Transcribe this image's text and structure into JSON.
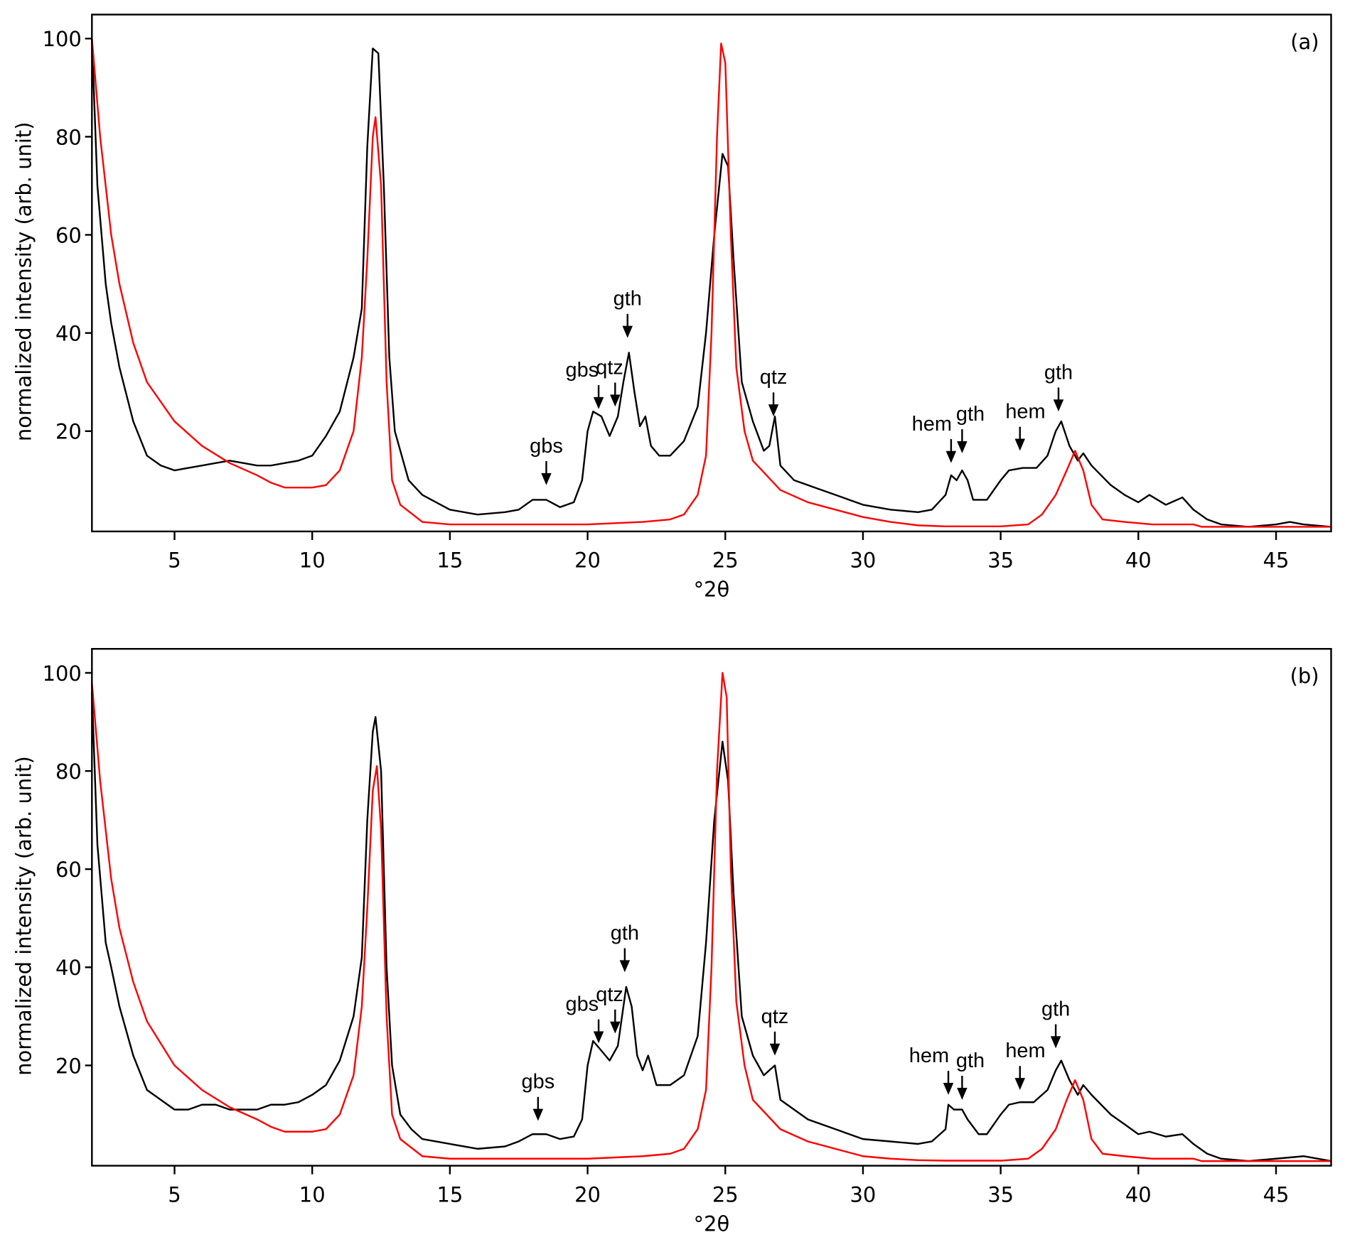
{
  "chart_data": [
    {
      "type": "line",
      "panel_label": "(a)",
      "xlabel": "°2θ",
      "ylabel": "normalized intensity (arb. unit)",
      "xlim": [
        2,
        47
      ],
      "ylim": [
        0,
        105
      ],
      "xticks": [
        5,
        10,
        15,
        20,
        25,
        30,
        35,
        40,
        45
      ],
      "yticks": [
        20,
        40,
        60,
        80,
        100
      ],
      "grid": false,
      "series": [
        {
          "name": "black",
          "color": "#000000",
          "x": [
            2,
            2.2,
            2.5,
            2.7,
            3,
            3.5,
            4,
            4.5,
            5,
            5.5,
            6,
            6.5,
            7,
            7.5,
            8,
            8.5,
            9,
            9.5,
            10,
            10.5,
            11,
            11.5,
            11.8,
            12,
            12.2,
            12.4,
            12.6,
            12.8,
            13,
            13.5,
            14,
            15,
            16,
            17,
            17.5,
            18,
            18.5,
            19,
            19.5,
            19.8,
            20,
            20.2,
            20.5,
            20.8,
            21.1,
            21.3,
            21.5,
            21.7,
            21.9,
            22.1,
            22.3,
            22.6,
            23,
            23.5,
            24,
            24.3,
            24.6,
            24.9,
            25.1,
            25.3,
            25.6,
            26,
            26.4,
            26.6,
            26.8,
            27,
            27.5,
            28,
            29,
            30,
            31,
            32,
            32.5,
            33,
            33.2,
            33.4,
            33.6,
            33.8,
            34,
            34.5,
            35,
            35.3,
            35.8,
            36.3,
            36.7,
            37,
            37.2,
            37.5,
            37.8,
            38,
            38.3,
            39,
            39.5,
            40,
            40.4,
            41,
            41.6,
            42,
            42.5,
            43,
            44,
            45,
            45.5,
            46,
            47
          ],
          "y": [
            100,
            70,
            50,
            42,
            33,
            22,
            15,
            13,
            12,
            12.5,
            13,
            13.5,
            14,
            13.5,
            13,
            13,
            13.5,
            14,
            15,
            19,
            24,
            35,
            45,
            78,
            98,
            97,
            70,
            35,
            20,
            10,
            7,
            4,
            3,
            3.5,
            4,
            6,
            6,
            4.5,
            5.5,
            10,
            20,
            24,
            23,
            19,
            23,
            30,
            36,
            28,
            21,
            23,
            17,
            15,
            15,
            18,
            25,
            40,
            60,
            76.5,
            74,
            55,
            30,
            22,
            16,
            17,
            23,
            13,
            10,
            9,
            7,
            5,
            4,
            3.5,
            4,
            7,
            11,
            10,
            12,
            10,
            6,
            6,
            10,
            12,
            12.5,
            12.5,
            15,
            20,
            22,
            17,
            14,
            15.5,
            13,
            9,
            7,
            5.5,
            7,
            5,
            6.5,
            4,
            2,
            1,
            0.5,
            1,
            1.5,
            1,
            0.5
          ]
        },
        {
          "name": "red",
          "color": "#ff0000",
          "x": [
            2,
            2.3,
            2.7,
            3,
            3.5,
            4,
            5,
            6,
            7,
            8,
            8.5,
            9,
            10,
            10.5,
            11,
            11.5,
            11.8,
            12,
            12.2,
            12.3,
            12.5,
            12.7,
            12.9,
            13.2,
            14,
            15,
            20,
            22,
            23,
            23.5,
            24,
            24.3,
            24.5,
            24.7,
            24.85,
            25,
            25.2,
            25.4,
            25.7,
            26,
            27,
            28,
            29,
            30,
            31,
            32,
            33,
            35,
            36,
            36.5,
            37,
            37.4,
            37.7,
            38,
            38.3,
            38.7,
            39.5,
            40.5,
            42,
            42.3,
            47
          ],
          "y": [
            100,
            80,
            60,
            50,
            38,
            30,
            22,
            17,
            13.5,
            11,
            9.5,
            8.5,
            8.5,
            9,
            12,
            20,
            35,
            55,
            80,
            84,
            70,
            30,
            10,
            5,
            1.5,
            1,
            1,
            1.5,
            2,
            3,
            7,
            15,
            40,
            80,
            99,
            95,
            60,
            33,
            20,
            14,
            8,
            5.5,
            4,
            2.5,
            1.5,
            0.8,
            0.6,
            0.6,
            1,
            3,
            7,
            12,
            16,
            12,
            5,
            2,
            1.5,
            1,
            1,
            0.5,
            0.5
          ]
        }
      ],
      "annotations": [
        {
          "label": "gbs",
          "x": 18.5,
          "y": 9,
          "label_x": 18.5
        },
        {
          "label": "gbs",
          "x": 20.4,
          "y": 24.5,
          "label_x": 19.8
        },
        {
          "label": "qtz",
          "x": 21.0,
          "y": 25,
          "label_x": 20.8
        },
        {
          "label": "gth",
          "x": 21.45,
          "y": 39,
          "label_x": 21.45
        },
        {
          "label": "qtz",
          "x": 26.75,
          "y": 23,
          "label_x": 26.75
        },
        {
          "label": "hem",
          "x": 33.2,
          "y": 13.5,
          "label_x": 32.5
        },
        {
          "label": "gth",
          "x": 33.6,
          "y": 15.5,
          "label_x": 33.9
        },
        {
          "label": "hem",
          "x": 35.7,
          "y": 16,
          "label_x": 35.9
        },
        {
          "label": "gth",
          "x": 37.1,
          "y": 24,
          "label_x": 37.1
        }
      ]
    },
    {
      "type": "line",
      "panel_label": "(b)",
      "xlabel": "°2θ",
      "ylabel": "normalized intensity (arb. unit)",
      "xlim": [
        2,
        47
      ],
      "ylim": [
        0,
        105
      ],
      "xticks": [
        5,
        10,
        15,
        20,
        25,
        30,
        35,
        40,
        45
      ],
      "yticks": [
        20,
        40,
        60,
        80,
        100
      ],
      "grid": false,
      "series": [
        {
          "name": "black",
          "color": "#000000",
          "x": [
            2,
            2.2,
            2.5,
            2.7,
            3,
            3.5,
            4,
            4.5,
            5,
            5.5,
            6,
            6.5,
            7,
            7.5,
            8,
            8.5,
            9,
            9.5,
            10,
            10.5,
            11,
            11.5,
            11.8,
            12,
            12.2,
            12.3,
            12.5,
            12.7,
            12.9,
            13.2,
            13.6,
            14,
            15,
            16,
            17,
            17.5,
            18,
            18.5,
            19,
            19.5,
            19.8,
            20,
            20.2,
            20.5,
            20.8,
            21.1,
            21.4,
            21.6,
            21.8,
            22,
            22.2,
            22.5,
            23,
            23.5,
            24,
            24.3,
            24.6,
            24.9,
            25.1,
            25.3,
            25.6,
            26,
            26.4,
            26.6,
            26.8,
            27,
            27.5,
            28,
            29,
            30,
            31,
            32,
            32.5,
            33,
            33.1,
            33.3,
            33.6,
            33.8,
            34.2,
            34.5,
            35,
            35.3,
            35.7,
            36.2,
            36.7,
            37,
            37.2,
            37.5,
            37.8,
            38,
            38.3,
            39,
            39.5,
            40,
            40.4,
            41,
            41.6,
            42,
            42.5,
            43,
            44,
            45,
            46,
            47
          ],
          "y": [
            96,
            65,
            45,
            40,
            32,
            22,
            15,
            13,
            11,
            11,
            12,
            12,
            11,
            11,
            11,
            12,
            12,
            12.5,
            14,
            16,
            21,
            30,
            42,
            70,
            88,
            91,
            80,
            40,
            20,
            10,
            7,
            5,
            4,
            3,
            3.5,
            4.5,
            6,
            6,
            5,
            5.5,
            9,
            20,
            25,
            23,
            21,
            24,
            36,
            32,
            22,
            19,
            22,
            16,
            16,
            18,
            26,
            45,
            70,
            86,
            78,
            55,
            30,
            22,
            18,
            19,
            20,
            13,
            11,
            9,
            7,
            5,
            4.5,
            4,
            4.5,
            7,
            12,
            11,
            11,
            9,
            6,
            6,
            10,
            12,
            12.5,
            12.5,
            15,
            19,
            21,
            17,
            14,
            16,
            14,
            10,
            8,
            6,
            6.5,
            5.5,
            6,
            4,
            2,
            1,
            0.5,
            1,
            1.5,
            0.5
          ]
        },
        {
          "name": "red",
          "color": "#ff0000",
          "x": [
            2,
            2.3,
            2.7,
            3,
            3.5,
            4,
            5,
            6,
            7,
            8,
            8.5,
            9,
            10,
            10.5,
            11,
            11.5,
            11.8,
            12,
            12.2,
            12.35,
            12.5,
            12.7,
            12.9,
            13.2,
            14,
            15,
            20,
            22,
            23,
            23.5,
            24,
            24.3,
            24.5,
            24.7,
            24.9,
            25.05,
            25.2,
            25.4,
            25.7,
            26,
            27,
            28,
            29,
            30,
            31,
            32,
            33,
            35,
            36,
            36.5,
            37,
            37.4,
            37.7,
            38,
            38.3,
            38.7,
            39.5,
            40.5,
            42,
            42.3,
            47
          ],
          "y": [
            98,
            78,
            58,
            48,
            37,
            29,
            20,
            15,
            11.5,
            9,
            7.5,
            6.5,
            6.5,
            7,
            10,
            18,
            32,
            52,
            76,
            81,
            68,
            30,
            10,
            5,
            1.5,
            1,
            1,
            1.5,
            2,
            3,
            7,
            15,
            40,
            80,
            100,
            95,
            60,
            33,
            20,
            13,
            7,
            4.5,
            3,
            1.5,
            1,
            0.7,
            0.6,
            0.6,
            1,
            3,
            7,
            13,
            17,
            13,
            5,
            2,
            1.5,
            1,
            1,
            0.5,
            0.5
          ]
        }
      ],
      "annotations": [
        {
          "label": "gbs",
          "x": 18.2,
          "y": 8.7,
          "label_x": 18.2
        },
        {
          "label": "gbs",
          "x": 20.4,
          "y": 24.5,
          "label_x": 19.8
        },
        {
          "label": "qtz",
          "x": 21.0,
          "y": 26.5,
          "label_x": 20.8
        },
        {
          "label": "gth",
          "x": 21.35,
          "y": 39,
          "label_x": 21.35
        },
        {
          "label": "qtz",
          "x": 26.8,
          "y": 22,
          "label_x": 26.8
        },
        {
          "label": "hem",
          "x": 33.1,
          "y": 14,
          "label_x": 32.4
        },
        {
          "label": "gth",
          "x": 33.6,
          "y": 13,
          "label_x": 33.9
        },
        {
          "label": "hem",
          "x": 35.7,
          "y": 15,
          "label_x": 35.9
        },
        {
          "label": "gth",
          "x": 37.0,
          "y": 23.5,
          "label_x": 37.0
        }
      ]
    }
  ]
}
